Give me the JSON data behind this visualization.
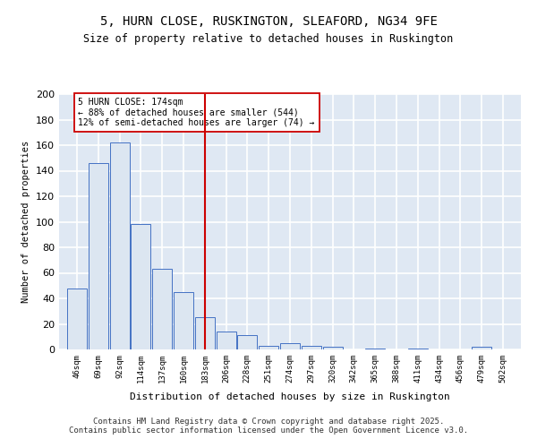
{
  "title_line1": "5, HURN CLOSE, RUSKINGTON, SLEAFORD, NG34 9FE",
  "title_line2": "Size of property relative to detached houses in Ruskington",
  "xlabel": "Distribution of detached houses by size in Ruskington",
  "ylabel": "Number of detached properties",
  "bar_color_face": "#dce6f1",
  "bar_color_edge": "#4472c4",
  "vline_color": "#cc0000",
  "vline_x": 183,
  "annotation_text": "5 HURN CLOSE: 174sqm\n← 88% of detached houses are smaller (544)\n12% of semi-detached houses are larger (74) →",
  "annotation_box_color": "#ffffff",
  "annotation_box_edge": "#cc0000",
  "bin_centers": [
    46,
    69,
    92,
    114,
    137,
    160,
    183,
    206,
    228,
    251,
    274,
    297,
    320,
    342,
    365,
    388,
    411,
    434,
    456,
    479,
    502
  ],
  "hist_values": [
    48,
    146,
    162,
    98,
    63,
    45,
    25,
    14,
    11,
    3,
    5,
    3,
    2,
    0,
    1,
    0,
    1,
    0,
    0,
    2,
    0
  ],
  "categories": [
    "46sqm",
    "69sqm",
    "92sqm",
    "114sqm",
    "137sqm",
    "160sqm",
    "183sqm",
    "206sqm",
    "228sqm",
    "251sqm",
    "274sqm",
    "297sqm",
    "320sqm",
    "342sqm",
    "365sqm",
    "388sqm",
    "411sqm",
    "434sqm",
    "456sqm",
    "479sqm",
    "502sqm"
  ],
  "ylim": [
    0,
    200
  ],
  "yticks": [
    0,
    20,
    40,
    60,
    80,
    100,
    120,
    140,
    160,
    180,
    200
  ],
  "bg_color": "#dfe8f3",
  "grid_color": "#ffffff",
  "footer_text": "Contains HM Land Registry data © Crown copyright and database right 2025.\nContains public sector information licensed under the Open Government Licence v3.0."
}
